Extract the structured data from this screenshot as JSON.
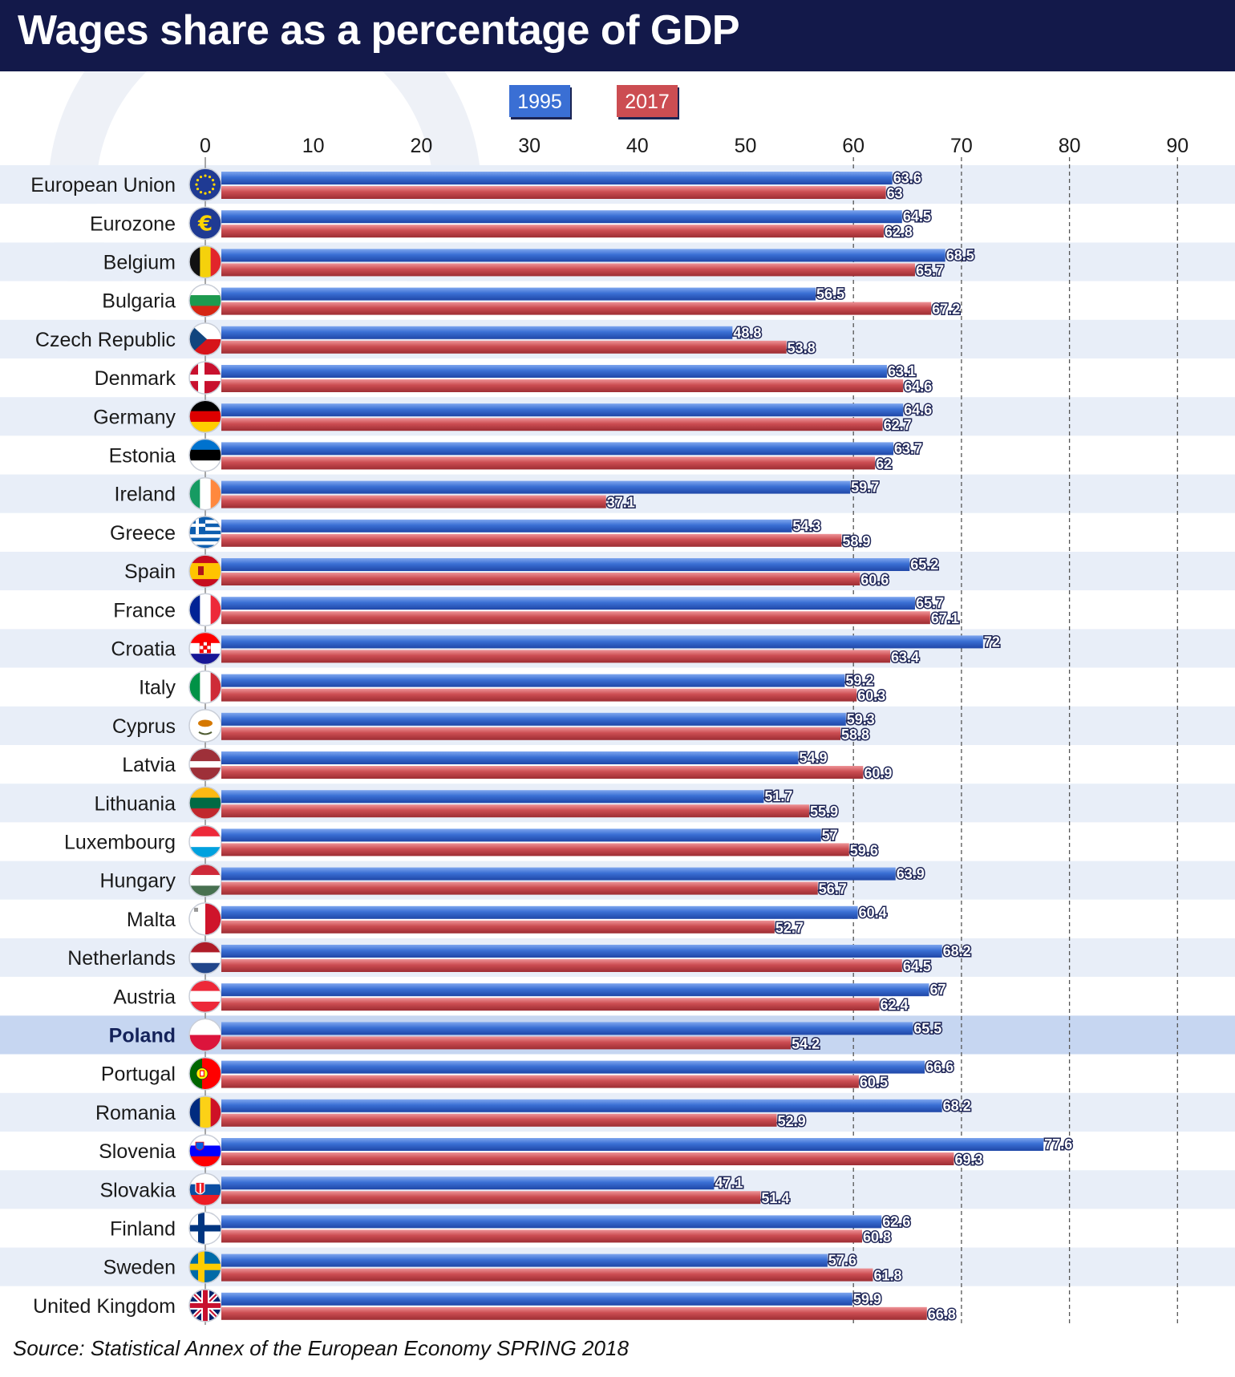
{
  "title": "Wages share as a percentage of GDP",
  "source": "Source: Statistical Annex of the European Economy SPRING 2018",
  "colors": {
    "header_bg": "#13194a",
    "series_1995": "#3a6fd4",
    "series_2017": "#cc4d52",
    "row_stripe": "#e8eef8",
    "highlight_row": "#c6d6f1"
  },
  "chart_data": {
    "type": "bar",
    "orientation": "horizontal",
    "title": "Wages share as a percentage of GDP",
    "xlim": [
      0,
      95
    ],
    "xticks": [
      0,
      10,
      20,
      30,
      40,
      50,
      60,
      70,
      80,
      90
    ],
    "grid": "vertical dashed from 60 to 90",
    "legend_position": "top-center",
    "highlight": "Poland",
    "categories": [
      "European Union",
      "Eurozone",
      "Belgium",
      "Bulgaria",
      "Czech Republic",
      "Denmark",
      "Germany",
      "Estonia",
      "Ireland",
      "Greece",
      "Spain",
      "France",
      "Croatia",
      "Italy",
      "Cyprus",
      "Latvia",
      "Lithuania",
      "Luxembourg",
      "Hungary",
      "Malta",
      "Netherlands",
      "Austria",
      "Poland",
      "Portugal",
      "Romania",
      "Slovenia",
      "Slovakia",
      "Finland",
      "Sweden",
      "United Kingdom"
    ],
    "flags": [
      "eu-flag-icon",
      "euro-icon",
      "belgium-flag-icon",
      "bulgaria-flag-icon",
      "czech-flag-icon",
      "denmark-flag-icon",
      "germany-flag-icon",
      "estonia-flag-icon",
      "ireland-flag-icon",
      "greece-flag-icon",
      "spain-flag-icon",
      "france-flag-icon",
      "croatia-flag-icon",
      "italy-flag-icon",
      "cyprus-flag-icon",
      "latvia-flag-icon",
      "lithuania-flag-icon",
      "luxembourg-flag-icon",
      "hungary-flag-icon",
      "malta-flag-icon",
      "netherlands-flag-icon",
      "austria-flag-icon",
      "poland-flag-icon",
      "portugal-flag-icon",
      "romania-flag-icon",
      "slovenia-flag-icon",
      "slovakia-flag-icon",
      "finland-flag-icon",
      "sweden-flag-icon",
      "united-kingdom-flag-icon"
    ],
    "series": [
      {
        "name": "1995",
        "values": [
          63.6,
          64.5,
          68.5,
          56.5,
          48.8,
          63.1,
          64.6,
          63.7,
          59.7,
          54.3,
          65.2,
          65.7,
          72,
          59.2,
          59.3,
          54.9,
          51.7,
          57,
          63.9,
          60.4,
          68.2,
          67,
          65.5,
          66.6,
          68.2,
          77.6,
          47.1,
          62.6,
          57.6,
          59.9
        ]
      },
      {
        "name": "2017",
        "values": [
          63,
          62.8,
          65.7,
          67.2,
          53.8,
          64.6,
          62.7,
          62,
          37.1,
          58.9,
          60.6,
          67.1,
          63.4,
          60.3,
          58.8,
          60.9,
          55.9,
          59.6,
          56.7,
          52.7,
          64.5,
          62.4,
          54.2,
          60.5,
          52.9,
          69.3,
          51.4,
          60.8,
          61.8,
          66.8
        ]
      }
    ]
  }
}
